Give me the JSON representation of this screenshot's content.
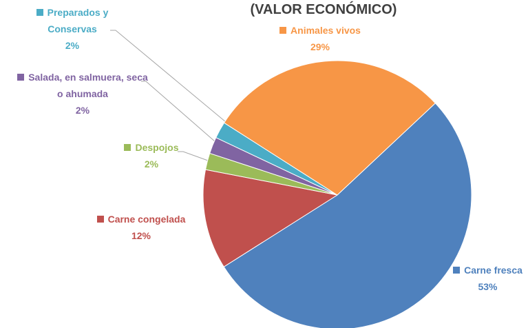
{
  "chart_data": {
    "type": "pie",
    "title": "(VALOR ECONÓMICO)",
    "categories": [
      "Carne fresca",
      "Carne congelada",
      "Despojos",
      "Salada, en salmuera, seca o ahumada",
      "Preparados y Conservas",
      "Animales vivos"
    ],
    "values": [
      53,
      12,
      2,
      2,
      2,
      29
    ],
    "value_labels": [
      "53%",
      "12%",
      "2%",
      "2%",
      "2%",
      "29%"
    ],
    "colors": [
      "#4f81bd",
      "#c0504d",
      "#9bbb59",
      "#8064a2",
      "#4bacc6",
      "#f79646"
    ]
  }
}
